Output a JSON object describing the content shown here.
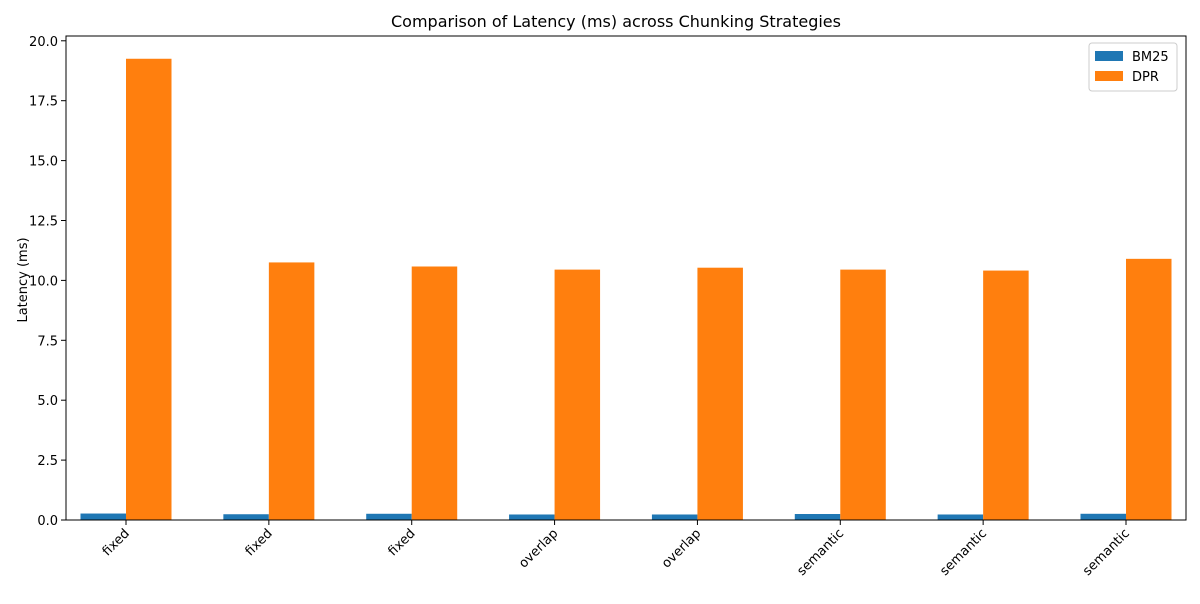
{
  "chart_data": {
    "type": "bar",
    "title": "Comparison of Latency (ms) across Chunking Strategies",
    "xlabel": "",
    "ylabel": "Latency (ms)",
    "categories": [
      "fixed",
      "fixed",
      "fixed",
      "overlap",
      "overlap",
      "semantic",
      "semantic",
      "semantic"
    ],
    "series": [
      {
        "name": "BM25",
        "color": "#1f77b4",
        "values": [
          0.27,
          0.24,
          0.26,
          0.23,
          0.23,
          0.25,
          0.23,
          0.26
        ]
      },
      {
        "name": "DPR",
        "color": "#ff7f0e",
        "values": [
          19.25,
          10.75,
          10.58,
          10.45,
          10.53,
          10.45,
          10.41,
          10.9
        ]
      }
    ],
    "ylim": [
      0,
      20.2
    ],
    "yticks": [
      0.0,
      2.5,
      5.0,
      7.5,
      10.0,
      12.5,
      15.0,
      17.5,
      20.0
    ],
    "ytick_labels": [
      "0.0",
      "2.5",
      "5.0",
      "7.5",
      "10.0",
      "12.5",
      "15.0",
      "17.5",
      "20.0"
    ],
    "grid": false,
    "legend_position": "top-right"
  }
}
